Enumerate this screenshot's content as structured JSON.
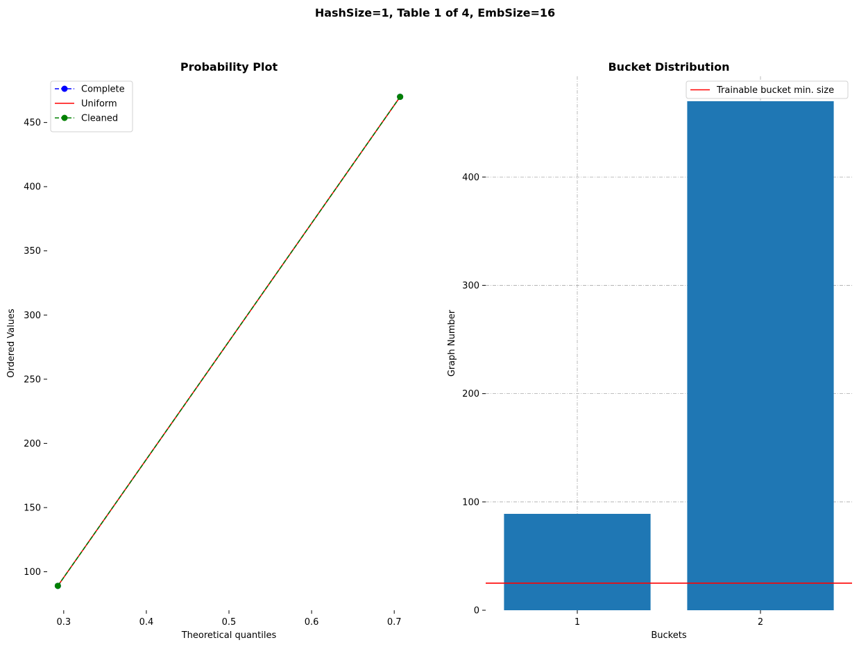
{
  "figure": {
    "suptitle": "HashSize=1, Table 1 of 4, EmbSize=16"
  },
  "chart_data": [
    {
      "type": "line",
      "title": "Probability Plot",
      "xlabel": "Theoretical quantiles",
      "ylabel": "Ordered Values",
      "xlim": [
        0.28,
        0.72
      ],
      "ylim": [
        70,
        486
      ],
      "xticks": [
        0.3,
        0.4,
        0.5,
        0.6,
        0.7
      ],
      "yticks": [
        100,
        150,
        200,
        250,
        300,
        350,
        400,
        450
      ],
      "xtick_labels": [
        "0.3",
        "0.4",
        "0.5",
        "0.6",
        "0.7"
      ],
      "ytick_labels": [
        "100",
        "150",
        "200",
        "250",
        "300",
        "350",
        "400",
        "450"
      ],
      "grid": false,
      "legend_position": "top-left",
      "series": [
        {
          "name": "Complete",
          "color": "#0000ff",
          "style": "dashed",
          "marker": "circle",
          "x": [
            0.2929,
            0.7071
          ],
          "y": [
            89,
            470
          ]
        },
        {
          "name": "Uniform",
          "color": "#ff0000",
          "style": "solid",
          "marker": "none",
          "x": [
            0.2929,
            0.7071
          ],
          "y": [
            89,
            470
          ]
        },
        {
          "name": "Cleaned",
          "color": "#008000",
          "style": "dashed",
          "marker": "circle",
          "x": [
            0.2929,
            0.7071
          ],
          "y": [
            89,
            470
          ]
        }
      ]
    },
    {
      "type": "bar",
      "title": "Bucket Distribution",
      "xlabel": "Buckets",
      "ylabel": "Graph Number",
      "categories": [
        "1",
        "2"
      ],
      "values": [
        89,
        470
      ],
      "bar_color": "#1f77b4",
      "xlim": [
        0.5,
        2.5
      ],
      "ylim": [
        0,
        493
      ],
      "yticks": [
        0,
        100,
        200,
        300,
        400
      ],
      "ytick_labels": [
        "0",
        "100",
        "200",
        "300",
        "400"
      ],
      "grid": true,
      "grid_color": "#aaaaaa",
      "hline": {
        "label": "Trainable bucket min. size",
        "value": 25,
        "color": "#ff0000"
      },
      "legend_position": "top-right"
    }
  ]
}
